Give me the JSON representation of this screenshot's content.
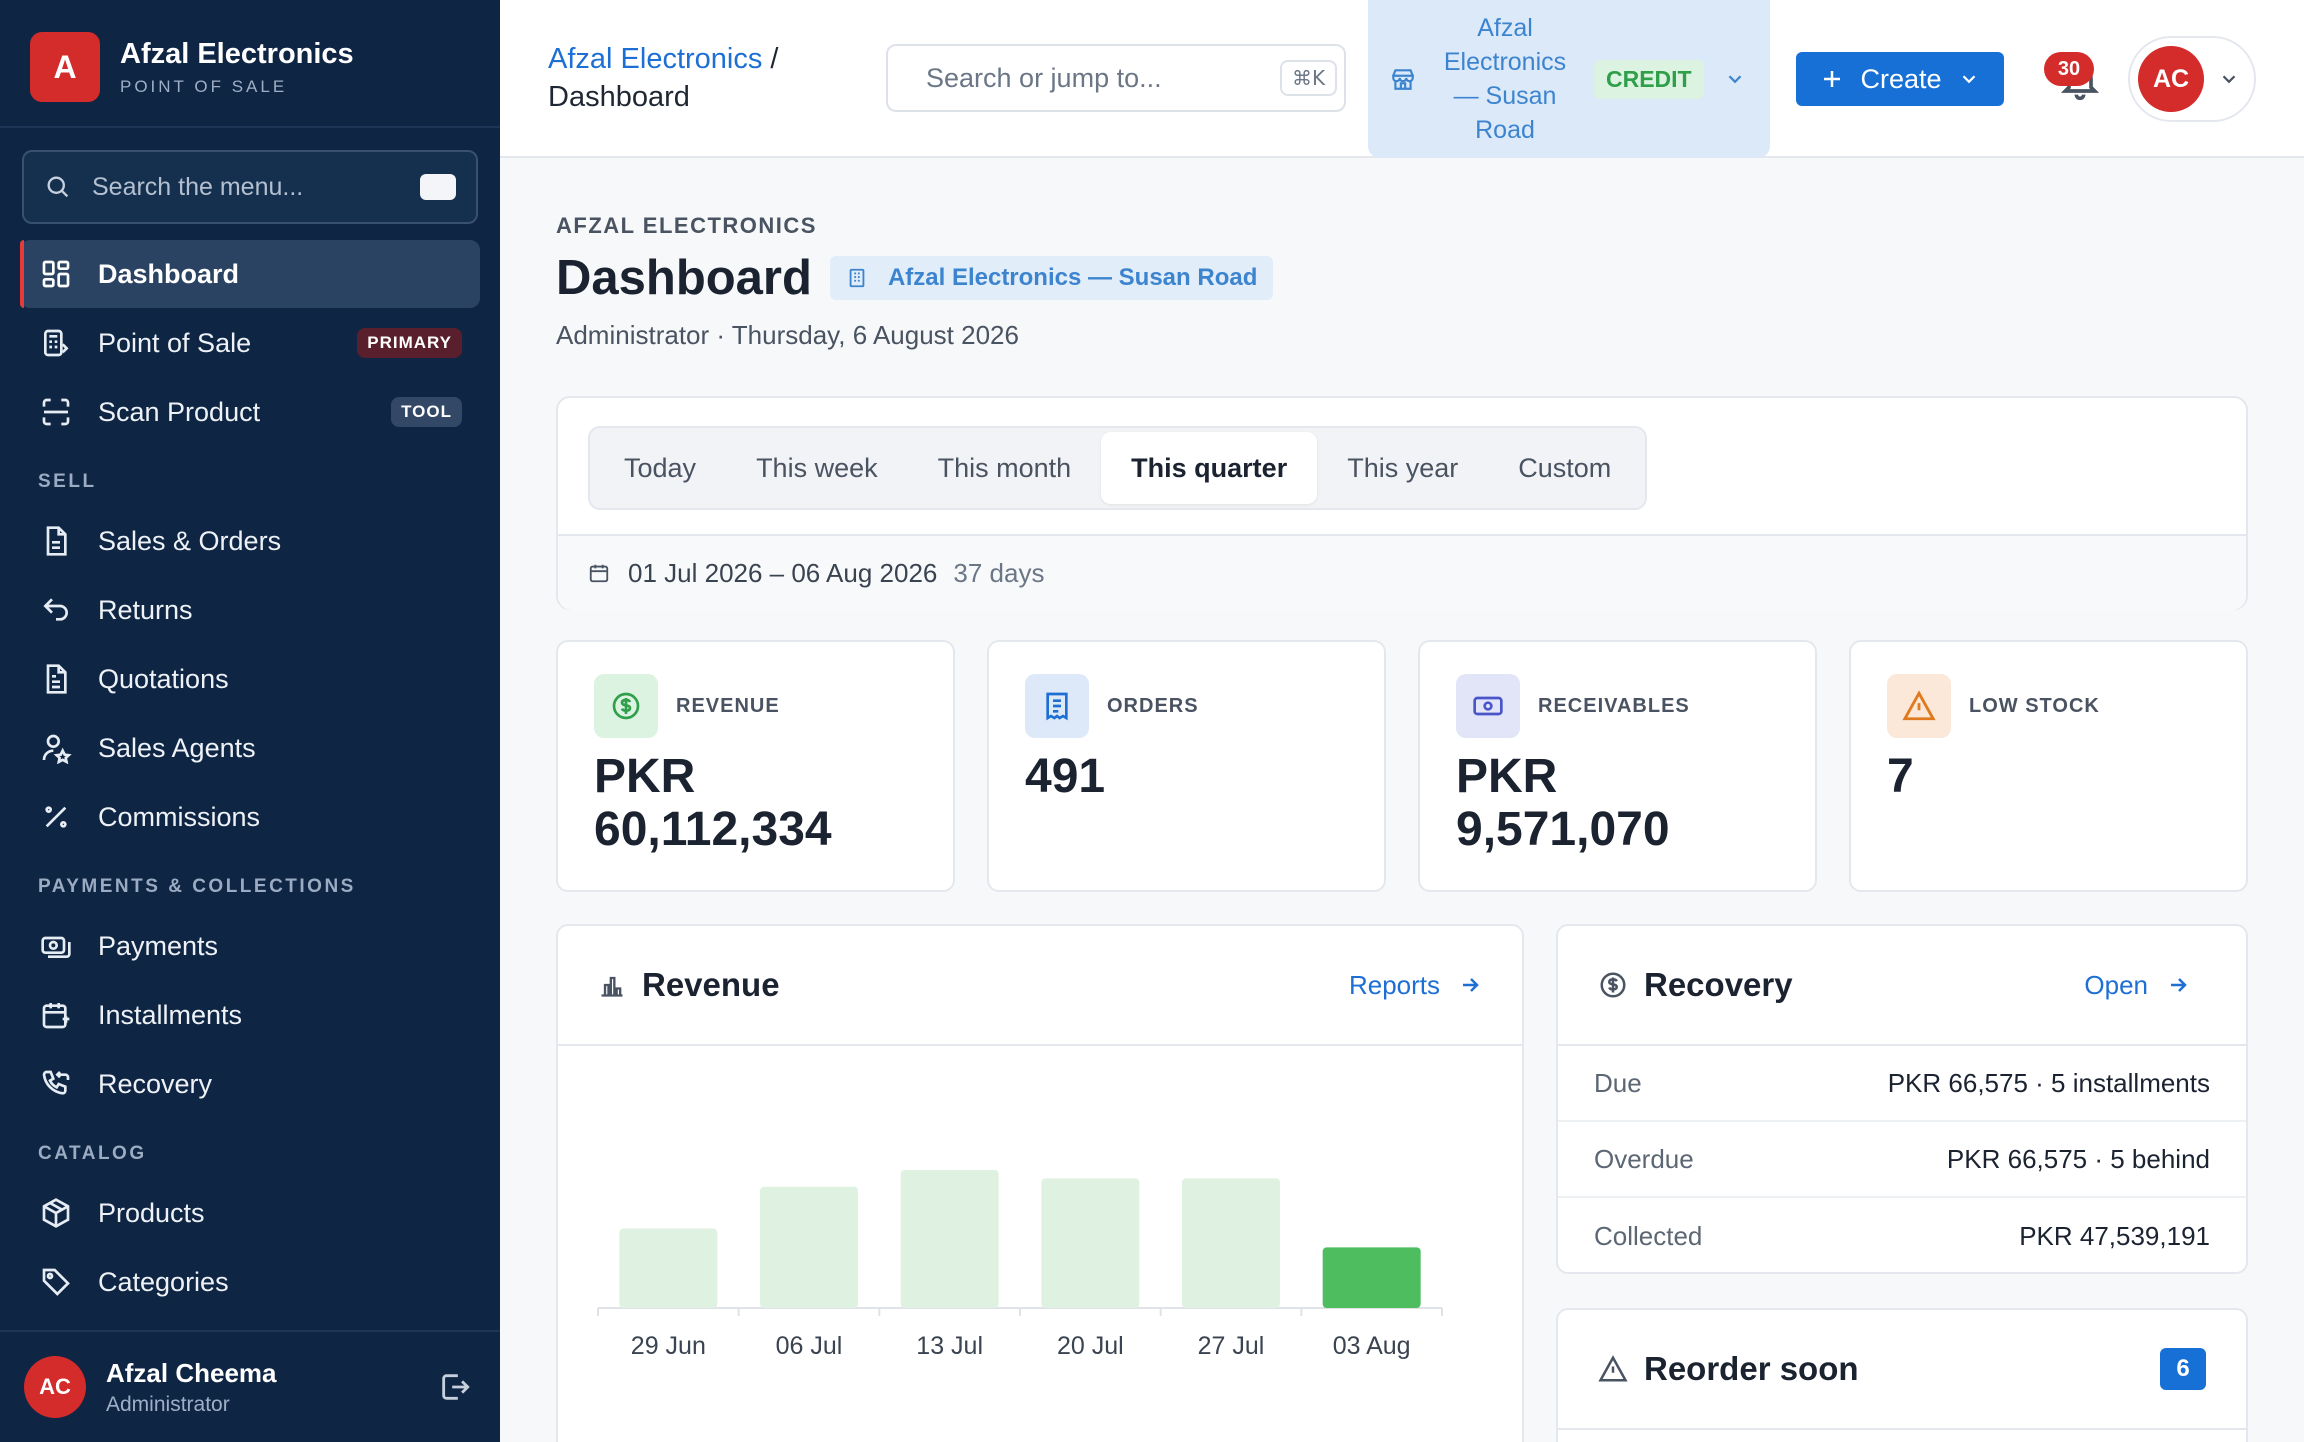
{
  "brand": {
    "initial": "A",
    "name": "Afzal Electronics",
    "subtitle": "POINT OF SALE"
  },
  "sidebar": {
    "search_placeholder": "Search the menu...",
    "items": [
      {
        "label": "Dashboard",
        "icon": "dashboard-icon",
        "active": true
      },
      {
        "label": "Point of Sale",
        "icon": "register-icon",
        "badge": "PRIMARY"
      },
      {
        "label": "Scan Product",
        "icon": "scan-icon",
        "badge": "TOOL"
      }
    ],
    "sections": [
      {
        "title": "SELL",
        "items": [
          {
            "label": "Sales & Orders",
            "icon": "document-icon"
          },
          {
            "label": "Returns",
            "icon": "return-arrow-icon"
          },
          {
            "label": "Quotations",
            "icon": "document-text-icon"
          },
          {
            "label": "Sales Agents",
            "icon": "user-star-icon"
          },
          {
            "label": "Commissions",
            "icon": "percent-icon"
          }
        ]
      },
      {
        "title": "PAYMENTS & COLLECTIONS",
        "items": [
          {
            "label": "Payments",
            "icon": "cash-icon"
          },
          {
            "label": "Installments",
            "icon": "calendar-cash-icon"
          },
          {
            "label": "Recovery",
            "icon": "phone-return-icon"
          }
        ]
      },
      {
        "title": "CATALOG",
        "items": [
          {
            "label": "Products",
            "icon": "box-icon"
          },
          {
            "label": "Categories",
            "icon": "tag-icon"
          }
        ]
      }
    ],
    "user": {
      "initials": "AC",
      "name": "Afzal Cheema",
      "role": "Administrator"
    }
  },
  "topbar": {
    "breadcrumb_parent": "Afzal Electronics",
    "breadcrumb_sep": "/",
    "breadcrumb_current": "Dashboard",
    "search_placeholder": "Search or jump to...",
    "search_shortcut": "⌘K",
    "store_name": "Afzal Electronics — Susan Road",
    "store_mode": "CREDIT",
    "create_label": "Create",
    "notification_count": "30",
    "avatar_initials": "AC"
  },
  "page": {
    "eyebrow": "AFZAL ELECTRONICS",
    "title": "Dashboard",
    "store_chip": "Afzal Electronics — Susan Road",
    "subtitle": "Administrator · Thursday, 6 August 2026"
  },
  "range": {
    "options": [
      "Today",
      "This week",
      "This month",
      "This quarter",
      "This year",
      "Custom"
    ],
    "selected": "This quarter",
    "dates": "01 Jul 2026 – 06 Aug 2026",
    "days": "37 days"
  },
  "kpis": [
    {
      "label": "REVENUE",
      "value": "PKR 60,112,334",
      "icon": "dollar-circle-icon",
      "color": "#2f9f4a",
      "bg": "#dcf3e1"
    },
    {
      "label": "ORDERS",
      "value": "491",
      "icon": "receipt-icon",
      "color": "#1e6fd4",
      "bg": "#dde9f8"
    },
    {
      "label": "RECEIVABLES",
      "value": "PKR 9,571,070",
      "icon": "cash-icon",
      "color": "#4a55c9",
      "bg": "#e2e5f8"
    },
    {
      "label": "LOW STOCK",
      "value": "7",
      "icon": "warning-icon",
      "color": "#e07a1f",
      "bg": "#fbe8d8"
    }
  ],
  "revenue": {
    "title": "Revenue",
    "link": "Reports",
    "chart_data": {
      "type": "bar",
      "categories": [
        "29 Jun",
        "06 Jul",
        "13 Jul",
        "20 Jul",
        "27 Jul",
        "03 Aug"
      ],
      "values": [
        7.6,
        11.6,
        13.2,
        12.4,
        12.4,
        5.8
      ],
      "highlight_index": 5,
      "colors": {
        "bar": "#dff2e2",
        "highlight": "#4dbd5f"
      }
    }
  },
  "recovery": {
    "title": "Recovery",
    "link": "Open",
    "rows": [
      {
        "label": "Due",
        "value": "PKR 66,575 · 5 installments"
      },
      {
        "label": "Overdue",
        "value": "PKR 66,575 · 5 behind"
      },
      {
        "label": "Collected",
        "value": "PKR 47,539,191"
      }
    ]
  },
  "reorder": {
    "title": "Reorder soon",
    "count": "6"
  }
}
